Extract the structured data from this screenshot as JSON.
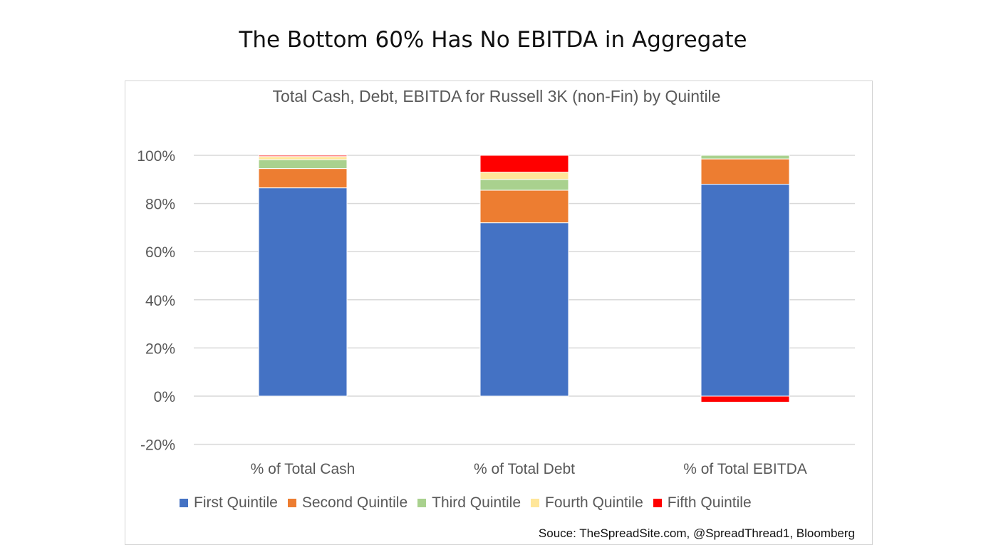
{
  "page": {
    "title": "The Bottom 60% Has No EBITDA in Aggregate",
    "source": "Souce: TheSpreadSite.com, @SpreadThread1, Bloomberg"
  },
  "chart_data": {
    "type": "bar",
    "stacked": true,
    "title": "Total Cash, Debt, EBITDA for Russell 3K (non-Fin) by Quintile",
    "categories": [
      "% of Total Cash",
      "% of Total Debt",
      "% of Total EBITDA"
    ],
    "series": [
      {
        "name": "First Quintile",
        "color": "#4472C4",
        "values": [
          86.5,
          72,
          88
        ]
      },
      {
        "name": "Second Quintile",
        "color": "#ED7D31",
        "values": [
          8,
          13.5,
          10.5
        ]
      },
      {
        "name": "Third Quintile",
        "color": "#A9D18E",
        "values": [
          3.7,
          4.5,
          1.5
        ]
      },
      {
        "name": "Fourth Quintile",
        "color": "#FFE699",
        "values": [
          1.3,
          3,
          0
        ]
      },
      {
        "name": "Fifth Quintile",
        "color": "#FF0000",
        "values": [
          0.5,
          7,
          -2.5
        ]
      }
    ],
    "yticks": [
      "-20%",
      "0%",
      "20%",
      "40%",
      "60%",
      "80%",
      "100%"
    ],
    "ytick_values": [
      -20,
      0,
      20,
      40,
      60,
      80,
      100
    ],
    "ylim": [
      -20,
      100
    ],
    "grid": true,
    "legend_position": "bottom"
  }
}
